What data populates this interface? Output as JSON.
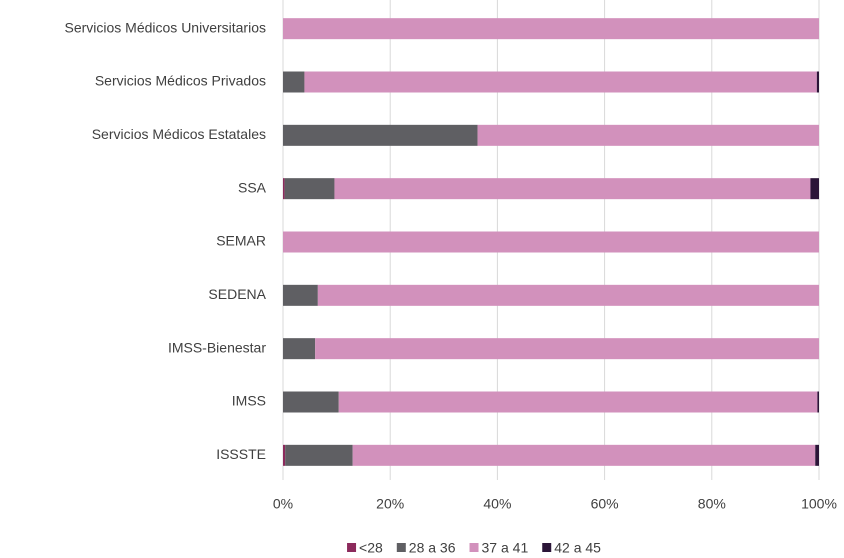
{
  "chart_data": {
    "type": "stacked-bar-horizontal",
    "categories": [
      "Servicios Médicos Universitarios",
      "Servicios Médicos Privados",
      "Servicios Médicos Estatales",
      "SSA",
      "SEMAR",
      "SEDENA",
      "IMSS-Bienestar",
      "IMSS",
      "ISSSTE"
    ],
    "series": [
      {
        "name": "<28",
        "color": "#8c2a5c",
        "values": [
          0,
          0,
          0,
          0.3,
          0,
          0,
          0,
          0,
          0.4
        ]
      },
      {
        "name": "28 a 36",
        "color": "#5f5f63",
        "values": [
          0,
          4,
          36.3,
          9.3,
          0,
          6.5,
          6,
          10.4,
          12.6
        ]
      },
      {
        "name": "37 a 41",
        "color": "#d291bc",
        "values": [
          100,
          95.6,
          63.7,
          88.8,
          100,
          93.5,
          94,
          89.3,
          86.3
        ]
      },
      {
        "name": "42 a 45",
        "color": "#2b1538",
        "values": [
          0,
          0.4,
          0,
          1.6,
          0,
          0,
          0,
          0.3,
          0.7
        ]
      }
    ],
    "xlim": [
      0,
      100
    ],
    "xticks": [
      {
        "value": 0,
        "label": "0%"
      },
      {
        "value": 20,
        "label": "20%"
      },
      {
        "value": 40,
        "label": "40%"
      },
      {
        "value": 60,
        "label": "60%"
      },
      {
        "value": 80,
        "label": "80%"
      },
      {
        "value": 100,
        "label": "100%"
      }
    ],
    "grid": true,
    "legend": "bottom"
  }
}
